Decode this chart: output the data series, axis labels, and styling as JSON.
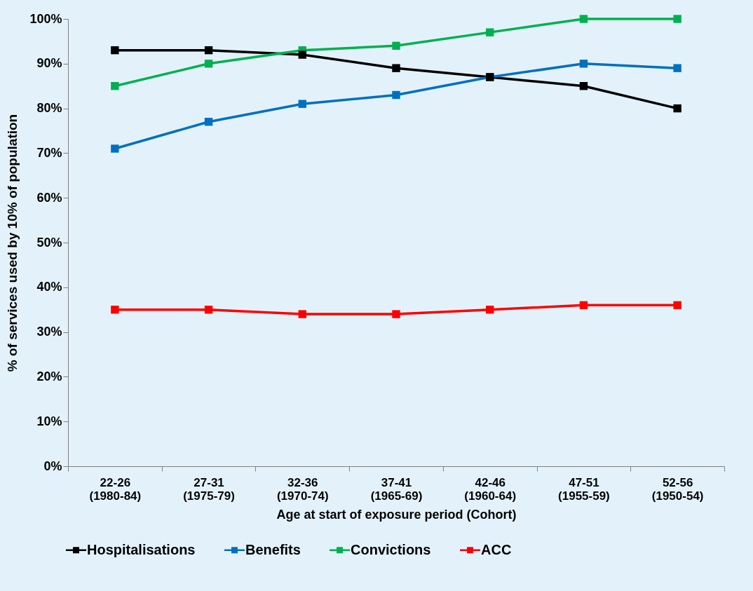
{
  "chart_data": {
    "type": "line",
    "xlabel": "Age at start of exposure period (Cohort)",
    "ylabel": "% of services used by 10% of population",
    "categories": [
      "22-26\n(1980-84)",
      "27-31\n(1975-79)",
      "32-36\n(1970-74)",
      "37-41\n(1965-69)",
      "42-46\n(1960-64)",
      "47-51\n(1955-59)",
      "52-56\n(1950-54)"
    ],
    "series": [
      {
        "name": "Hospitalisations",
        "color": "#000000",
        "values": [
          93,
          93,
          92,
          89,
          87,
          85,
          80
        ]
      },
      {
        "name": "Benefits",
        "color": "#0070c0",
        "values": [
          71,
          77,
          81,
          83,
          87,
          90,
          89
        ]
      },
      {
        "name": "Convictions",
        "color": "#00b050",
        "values": [
          85,
          90,
          93,
          94,
          97,
          100,
          100
        ]
      },
      {
        "name": "ACC",
        "color": "#ff0000",
        "values": [
          35,
          35,
          34,
          34,
          35,
          36,
          36
        ]
      }
    ],
    "ylim": [
      0,
      100
    ],
    "yticks": [
      {
        "value": 0,
        "label": "0%"
      },
      {
        "value": 10,
        "label": "10%"
      },
      {
        "value": 20,
        "label": "20%"
      },
      {
        "value": 30,
        "label": "30%"
      },
      {
        "value": 40,
        "label": "40%"
      },
      {
        "value": 50,
        "label": "50%"
      },
      {
        "value": 60,
        "label": "60%"
      },
      {
        "value": 70,
        "label": "70%"
      },
      {
        "value": 80,
        "label": "80%"
      },
      {
        "value": 90,
        "label": "90%"
      },
      {
        "value": 100,
        "label": "100%"
      }
    ],
    "grid": false,
    "legend": "bottom",
    "marker": "square",
    "line_style": "solid"
  }
}
